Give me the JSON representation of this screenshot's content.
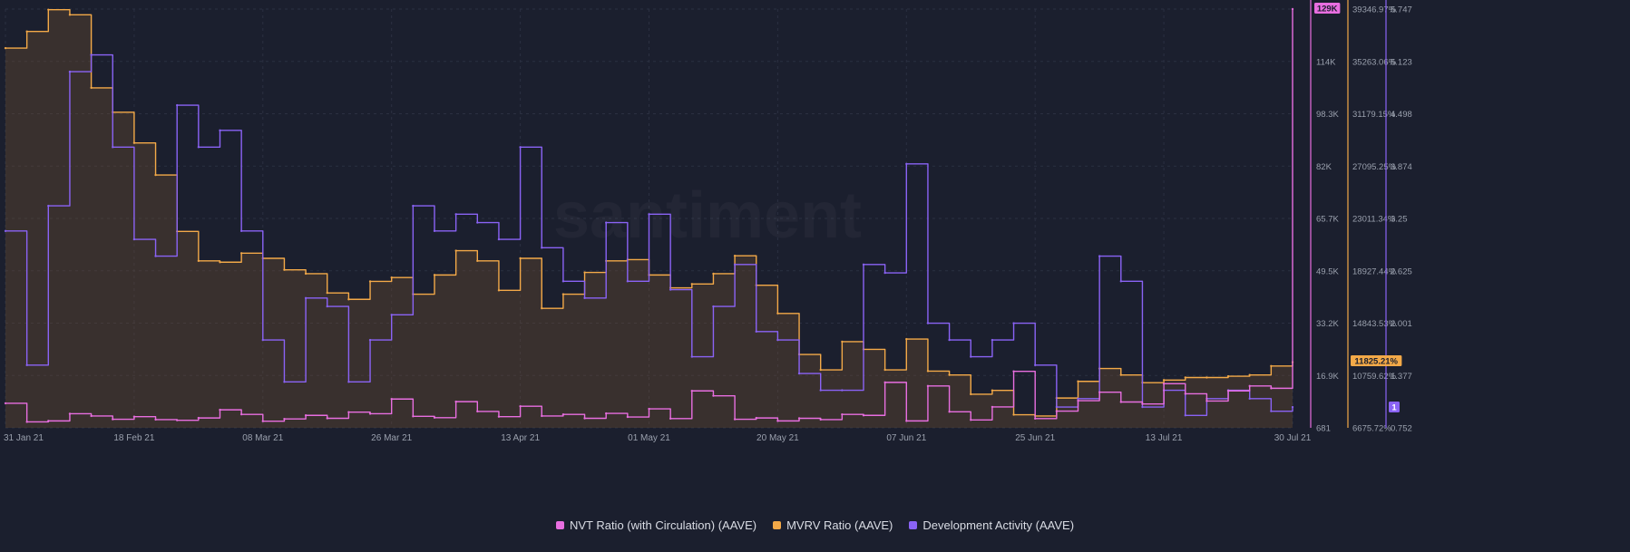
{
  "watermark": "santiment",
  "chart_data": {
    "type": "line",
    "title": "",
    "x_ticks": [
      "31 Jan 21",
      "18 Feb 21",
      "08 Mar 21",
      "26 Mar 21",
      "13 Apr 21",
      "01 May 21",
      "20 May 21",
      "07 Jun 21",
      "25 Jun 21",
      "13 Jul 21",
      "30 Jul 21"
    ],
    "x": [
      "31 Jan 21",
      "03 Feb 21",
      "06 Feb 21",
      "09 Feb 21",
      "12 Feb 21",
      "15 Feb 21",
      "18 Feb 21",
      "21 Feb 21",
      "24 Feb 21",
      "27 Feb 21",
      "02 Mar 21",
      "05 Mar 21",
      "08 Mar 21",
      "11 Mar 21",
      "14 Mar 21",
      "17 Mar 21",
      "20 Mar 21",
      "23 Mar 21",
      "26 Mar 21",
      "29 Mar 21",
      "01 Apr 21",
      "04 Apr 21",
      "07 Apr 21",
      "10 Apr 21",
      "13 Apr 21",
      "16 Apr 21",
      "19 Apr 21",
      "22 Apr 21",
      "25 Apr 21",
      "28 Apr 21",
      "01 May 21",
      "04 May 21",
      "07 May 21",
      "10 May 21",
      "13 May 21",
      "16 May 21",
      "20 May 21",
      "23 May 21",
      "26 May 21",
      "29 May 21",
      "01 Jun 21",
      "04 Jun 21",
      "07 Jun 21",
      "10 Jun 21",
      "13 Jun 21",
      "16 Jun 21",
      "19 Jun 21",
      "22 Jun 21",
      "25 Jun 21",
      "28 Jun 21",
      "01 Jul 21",
      "04 Jul 21",
      "07 Jul 21",
      "10 Jul 21",
      "13 Jul 21",
      "16 Jul 21",
      "19 Jul 21",
      "22 Jul 21",
      "25 Jul 21",
      "28 Jul 21",
      "30 Jul 21"
    ],
    "axes": [
      {
        "name": "nvt",
        "ticks": [
          "129K",
          "114K",
          "98.3K",
          "82K",
          "65.7K",
          "49.5K",
          "33.2K",
          "16.9K",
          "681"
        ],
        "current_label": "129K",
        "color": "#e86ee0"
      },
      {
        "name": "mvrv",
        "ticks": [
          "39346.97%",
          "35263.06%",
          "31179.15%",
          "27095.25%",
          "23011.34%",
          "18927.44%",
          "14843.53%",
          "10759.62%",
          "6675.72%"
        ],
        "current_label": "11825.21%",
        "color": "#f3a948"
      },
      {
        "name": "dev",
        "ticks": [
          "5.747",
          "5.123",
          "4.498",
          "3.874",
          "3.25",
          "2.625",
          "2.001",
          "1.377",
          "0.752"
        ],
        "current_label": "1",
        "color": "#8a63f5"
      }
    ],
    "series": [
      {
        "name": "NVT Ratio (with Circulation) (AAVE)",
        "color": "#e86ee0",
        "ylim": [
          681,
          129000
        ],
        "values": [
          8200,
          2500,
          2800,
          5000,
          4300,
          3300,
          4100,
          3200,
          3000,
          3700,
          6200,
          4800,
          2700,
          3400,
          4500,
          3600,
          5500,
          5000,
          9500,
          4200,
          3800,
          8700,
          5700,
          4100,
          7300,
          4300,
          4800,
          3600,
          5100,
          4000,
          6500,
          3500,
          12000,
          10500,
          3300,
          3700,
          2800,
          3600,
          3200,
          4800,
          4500,
          14600,
          2800,
          13500,
          5600,
          3100,
          7100,
          18000,
          3500,
          5800,
          9000,
          11600,
          8600,
          8000,
          14200,
          11100,
          8900,
          12000,
          13500,
          12800,
          129000
        ]
      },
      {
        "name": "MVRV Ratio (AAVE)",
        "color": "#f3a948",
        "ylim": [
          6675.72,
          39346.97
        ],
        "values": [
          36300,
          37600,
          39300,
          38900,
          33200,
          31300,
          28900,
          26400,
          22000,
          19700,
          19600,
          20300,
          19900,
          19000,
          18700,
          17200,
          16700,
          18100,
          18400,
          17100,
          18600,
          20500,
          19700,
          17400,
          19900,
          16000,
          17100,
          18800,
          19700,
          19800,
          18600,
          17600,
          17900,
          18700,
          20100,
          17800,
          15600,
          12400,
          11200,
          13400,
          12800,
          11200,
          13600,
          11100,
          10800,
          9300,
          9600,
          7700,
          7600,
          9000,
          10300,
          11300,
          10800,
          10200,
          10400,
          10600,
          10600,
          10700,
          10800,
          11500,
          11800
        ]
      },
      {
        "name": "Development Activity (AAVE)",
        "color": "#8a63f5",
        "ylim": [
          0.752,
          5.747
        ],
        "values": [
          3.1,
          1.5,
          3.4,
          5.0,
          5.2,
          4.1,
          3.0,
          2.8,
          4.6,
          4.1,
          4.3,
          3.1,
          1.8,
          1.3,
          2.3,
          2.2,
          1.3,
          1.8,
          2.1,
          3.4,
          3.1,
          3.3,
          3.2,
          3.0,
          4.1,
          2.9,
          2.5,
          2.3,
          3.2,
          2.5,
          3.3,
          2.4,
          1.6,
          2.2,
          2.7,
          1.9,
          1.8,
          1.4,
          1.2,
          1.2,
          2.7,
          2.6,
          3.9,
          2.0,
          1.8,
          1.6,
          1.8,
          2.0,
          1.5,
          1.0,
          1.1,
          2.8,
          2.5,
          1.0,
          1.2,
          0.9,
          1.1,
          1.2,
          1.1,
          0.95,
          1.0
        ]
      }
    ]
  },
  "legend": {
    "nvt": "NVT Ratio (with Circulation) (AAVE)",
    "mvrv": "MVRV Ratio (AAVE)",
    "dev": "Development Activity (AAVE)"
  },
  "colors": {
    "background": "#1b1f2e",
    "nvt": "#e86ee0",
    "mvrv": "#f3a948",
    "dev": "#8a63f5",
    "grid": "#2b3041",
    "tick_text": "#9aa0ad"
  }
}
